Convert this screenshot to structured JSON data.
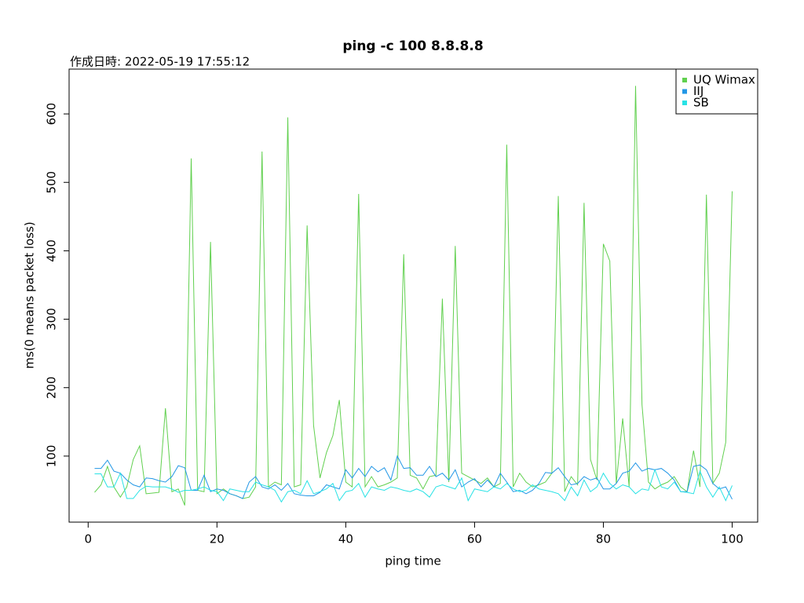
{
  "chart_data": {
    "type": "line",
    "title": "ping -c 100 8.8.8.8",
    "subtitle": "作成日時: 2022-05-19 17:55:12",
    "x_label": "ping time",
    "y_label": "ms(0 means packet loss)",
    "x": [
      1,
      2,
      3,
      4,
      5,
      6,
      7,
      8,
      9,
      10,
      11,
      12,
      13,
      14,
      15,
      16,
      17,
      18,
      19,
      20,
      21,
      22,
      23,
      24,
      25,
      26,
      27,
      28,
      29,
      30,
      31,
      32,
      33,
      34,
      35,
      36,
      37,
      38,
      39,
      40,
      41,
      42,
      43,
      44,
      45,
      46,
      47,
      48,
      49,
      50,
      51,
      52,
      53,
      54,
      55,
      56,
      57,
      58,
      59,
      60,
      61,
      62,
      63,
      64,
      65,
      66,
      67,
      68,
      69,
      70,
      71,
      72,
      73,
      74,
      75,
      76,
      77,
      78,
      79,
      80,
      81,
      82,
      83,
      84,
      85,
      86,
      87,
      88,
      89,
      90,
      91,
      92,
      93,
      94,
      95,
      96,
      97,
      98,
      99,
      100
    ],
    "series": [
      {
        "name": "UQ Wimax",
        "color": "#61D04F",
        "values": [
          47,
          58,
          85,
          55,
          40,
          55,
          95,
          115,
          45,
          46,
          47,
          170,
          48,
          52,
          28,
          535,
          50,
          48,
          413,
          45,
          52,
          45,
          42,
          38,
          40,
          55,
          545,
          55,
          62,
          58,
          595,
          55,
          58,
          437,
          145,
          68,
          105,
          130,
          182,
          62,
          55,
          483,
          55,
          70,
          55,
          58,
          62,
          68,
          395,
          72,
          68,
          52,
          70,
          72,
          330,
          62,
          407,
          75,
          70,
          65,
          60,
          68,
          55,
          60,
          555,
          55,
          75,
          62,
          55,
          58,
          62,
          75,
          480,
          48,
          70,
          58,
          470,
          95,
          65,
          410,
          385,
          60,
          155,
          55,
          641,
          175,
          62,
          52,
          58,
          62,
          70,
          55,
          48,
          108,
          55,
          482,
          60,
          75,
          120,
          487
        ]
      },
      {
        "name": "IIJ",
        "color": "#2297E6",
        "values": [
          82,
          82,
          94,
          78,
          75,
          65,
          58,
          55,
          68,
          67,
          64,
          62,
          70,
          86,
          83,
          50,
          50,
          72,
          48,
          52,
          50,
          45,
          42,
          38,
          62,
          70,
          55,
          52,
          58,
          50,
          60,
          45,
          43,
          42,
          42,
          47,
          58,
          55,
          52,
          80,
          68,
          82,
          70,
          85,
          77,
          83,
          65,
          100,
          82,
          83,
          72,
          72,
          85,
          70,
          75,
          65,
          80,
          55,
          62,
          67,
          55,
          65,
          55,
          75,
          62,
          48,
          50,
          45,
          50,
          60,
          76,
          75,
          83,
          70,
          58,
          60,
          70,
          65,
          68,
          52,
          52,
          60,
          75,
          78,
          90,
          78,
          82,
          80,
          82,
          75,
          65,
          48,
          48,
          85,
          87,
          80,
          60,
          52,
          55,
          37
        ]
      },
      {
        "name": "SB",
        "color": "#28E2E5",
        "values": [
          74,
          74,
          55,
          55,
          75,
          38,
          38,
          50,
          56,
          55,
          55,
          55,
          52,
          47,
          50,
          50,
          52,
          55,
          50,
          48,
          35,
          52,
          50,
          48,
          48,
          62,
          58,
          55,
          50,
          33,
          48,
          50,
          45,
          64,
          45,
          48,
          52,
          60,
          35,
          48,
          50,
          60,
          40,
          55,
          52,
          50,
          55,
          53,
          50,
          48,
          52,
          48,
          40,
          55,
          58,
          55,
          52,
          68,
          35,
          52,
          50,
          48,
          55,
          52,
          60,
          52,
          48,
          50,
          58,
          52,
          50,
          48,
          45,
          35,
          55,
          42,
          65,
          48,
          55,
          75,
          60,
          52,
          58,
          55,
          45,
          52,
          50,
          80,
          55,
          52,
          62,
          48,
          47,
          45,
          78,
          55,
          40,
          55,
          35,
          57
        ]
      }
    ],
    "xlim": [
      -2.96,
      103.96
    ],
    "ylim": [
      3.5,
      665.5
    ],
    "xticks": [
      0,
      20,
      40,
      60,
      80,
      100
    ],
    "yticks": [
      100,
      200,
      300,
      400,
      500,
      600
    ],
    "legend": "topright"
  }
}
